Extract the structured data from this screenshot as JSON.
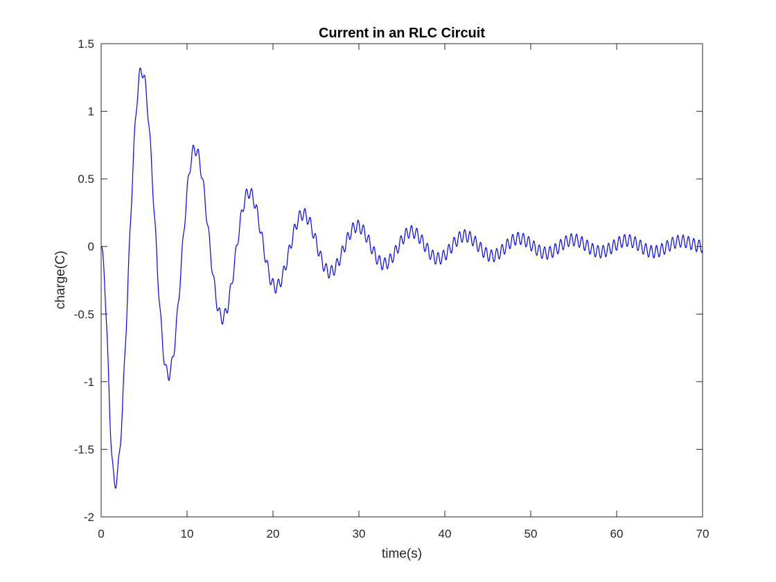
{
  "chart_data": {
    "type": "line",
    "title": "Current in an RLC Circuit",
    "xlabel": "time(s)",
    "ylabel": "charge(C)",
    "xlim": [
      0,
      70
    ],
    "ylim": [
      -2,
      1.5
    ],
    "xticks": [
      0,
      10,
      20,
      30,
      40,
      50,
      60,
      70
    ],
    "xtick_labels": [
      "0",
      "10",
      "20",
      "30",
      "40",
      "50",
      "60",
      "70"
    ],
    "yticks": [
      -2,
      -1.5,
      -1,
      -0.5,
      0,
      0.5,
      1,
      1.5
    ],
    "ytick_labels": [
      "-2",
      "-1.5",
      "-1",
      "-0.5",
      "0",
      "0.5",
      "1",
      "1.5"
    ],
    "grid": false,
    "box": true,
    "series": [
      {
        "color": "#0000ff",
        "x": [
          0,
          1.6,
          4.7,
          7.8,
          10.9,
          14.1,
          17.2,
          20.3,
          23.5,
          26.6,
          29.8,
          32.9,
          36.1,
          39.2,
          42.3,
          45.5,
          48.6,
          51.8,
          54.9,
          58.1,
          61.2,
          64.3,
          67.5,
          70
        ],
        "y": [
          0,
          -1.75,
          1.3,
          -0.95,
          0.72,
          -0.53,
          0.4,
          -0.3,
          0.24,
          -0.19,
          0.15,
          -0.13,
          0.11,
          -0.09,
          0.08,
          -0.07,
          0.06,
          -0.05,
          0.05,
          -0.04,
          0.045,
          -0.04,
          0.04,
          0
        ]
      }
    ]
  },
  "colors": {
    "line": "#0000ff",
    "axes": "#262626",
    "background": "#ffffff"
  }
}
